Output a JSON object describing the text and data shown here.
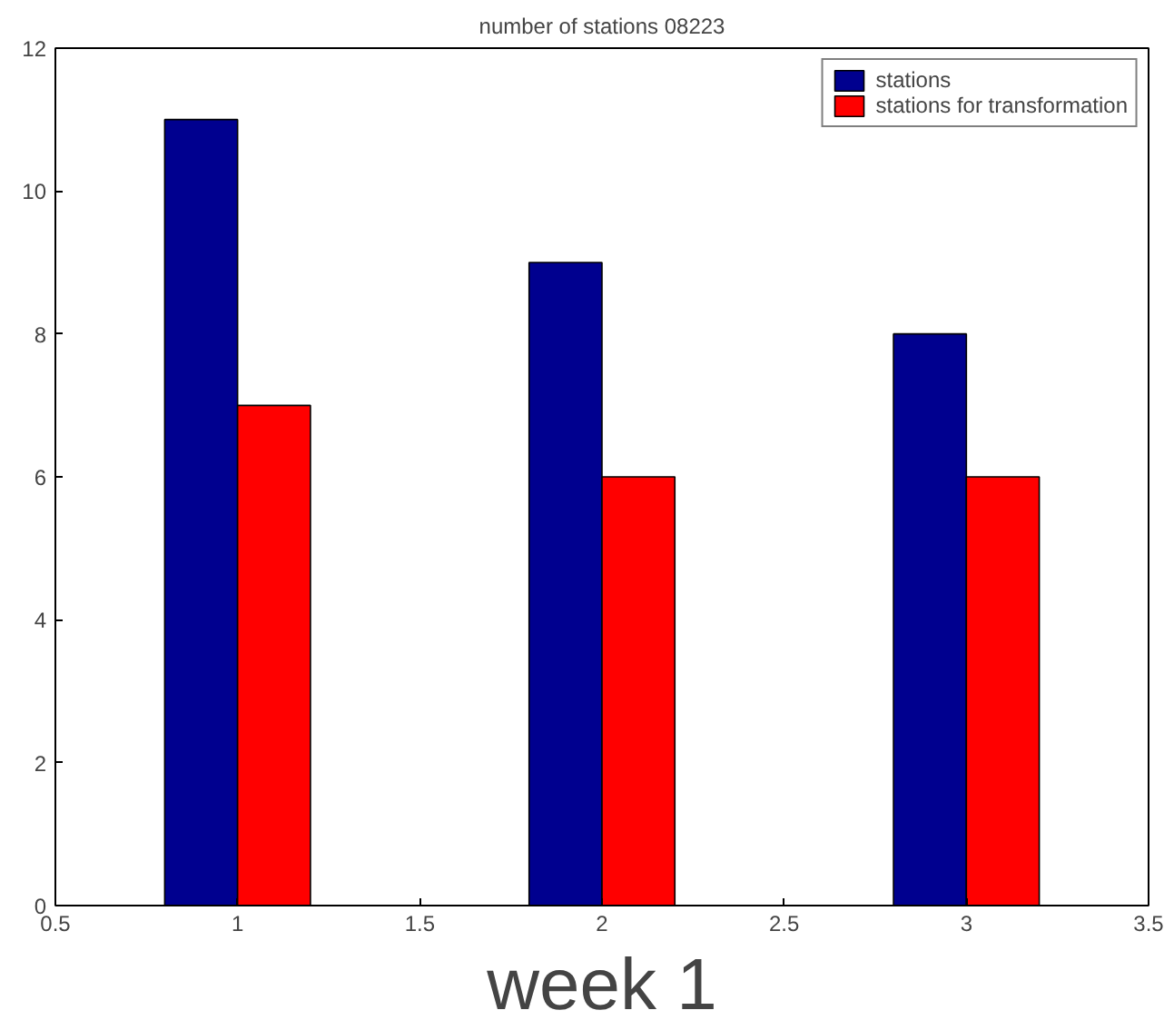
{
  "chart_data": {
    "type": "bar",
    "title": "number of stations 08223",
    "xlabel": "week 1",
    "x": [
      1,
      2,
      3
    ],
    "series": [
      {
        "name": "stations",
        "color": "#00008f",
        "values": [
          11,
          9,
          8
        ]
      },
      {
        "name": "stations for transformation",
        "color": "#ff0000",
        "values": [
          7,
          6,
          6
        ]
      }
    ],
    "xlim": [
      0.5,
      3.5
    ],
    "xticks": [
      0.5,
      1,
      1.5,
      2,
      2.5,
      3,
      3.5
    ],
    "ylim": [
      0,
      12
    ],
    "yticks": [
      0,
      2,
      4,
      6,
      8,
      10,
      12
    ],
    "grid": false,
    "legend": "top right"
  }
}
